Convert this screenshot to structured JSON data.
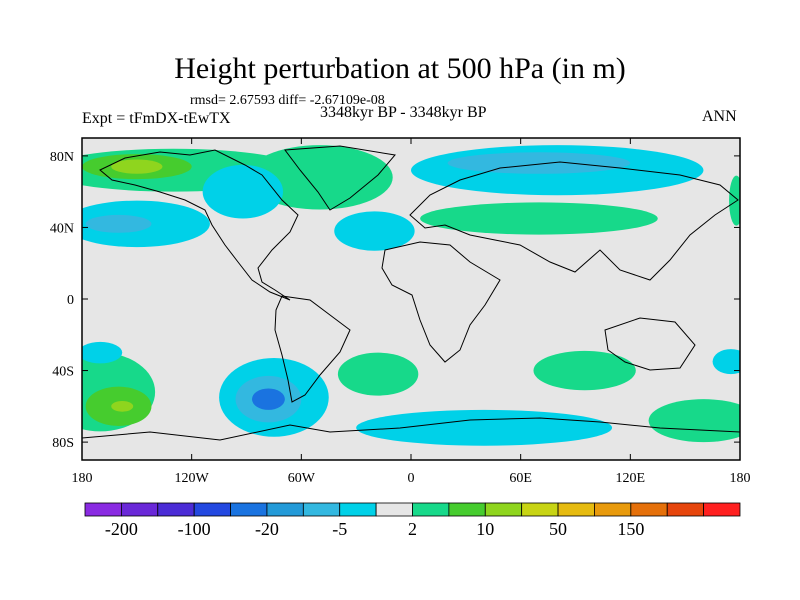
{
  "chart_data": {
    "type": "heatmap",
    "title": "Height perturbation at 500 hPa (in m)",
    "stats_text": "rmsd= 2.67593 diff= -2.67109e-08",
    "left_label": "Expt = tFmDX-tEwTX",
    "center_label": "3348kyr BP - 3348kyr BP",
    "right_label": "ANN",
    "x_ticks": [
      {
        "value": -180,
        "label": "180"
      },
      {
        "value": -120,
        "label": "120W"
      },
      {
        "value": -60,
        "label": "60W"
      },
      {
        "value": 0,
        "label": "0"
      },
      {
        "value": 60,
        "label": "60E"
      },
      {
        "value": 120,
        "label": "120E"
      },
      {
        "value": 180,
        "label": "180"
      }
    ],
    "y_ticks": [
      {
        "value": 80,
        "label": "80N"
      },
      {
        "value": 40,
        "label": "40N"
      },
      {
        "value": 0,
        "label": "0"
      },
      {
        "value": -40,
        "label": "40S"
      },
      {
        "value": -80,
        "label": "80S"
      }
    ],
    "xlim": [
      -180,
      180
    ],
    "ylim": [
      -90,
      90
    ],
    "colorbar": {
      "colors": [
        "#8a2be2",
        "#6a28d8",
        "#4b2cd6",
        "#2348e0",
        "#1a73e0",
        "#239ad8",
        "#33b8e0",
        "#00d1e8",
        "#e6e6e6",
        "#17d98a",
        "#46cc2e",
        "#8fd51e",
        "#c8d414",
        "#e6bb10",
        "#e89a0c",
        "#e5700a",
        "#e6450c",
        "#ff2020"
      ],
      "labels": [
        {
          "boundary": 1,
          "text": "-200"
        },
        {
          "boundary": 3,
          "text": "-100"
        },
        {
          "boundary": 5,
          "text": "-20"
        },
        {
          "boundary": 7,
          "text": "-5"
        },
        {
          "boundary": 9,
          "text": "2"
        },
        {
          "boundary": 11,
          "text": "10"
        },
        {
          "boundary": 13,
          "text": "50"
        },
        {
          "boundary": 15,
          "text": "150"
        }
      ]
    },
    "regions": [
      {
        "name": "north-atlantic-arctic-high",
        "value": 5,
        "color": "#17d98a",
        "lon": -130,
        "lat": 72,
        "rlon": 70,
        "rlat": 12
      },
      {
        "name": "greenland-high",
        "value": 5,
        "color": "#17d98a",
        "lon": -50,
        "lat": 68,
        "rlon": 40,
        "rlat": 18
      },
      {
        "name": "alaska-high-core",
        "value": 12,
        "color": "#46cc2e",
        "lon": -150,
        "lat": 74,
        "rlon": 30,
        "rlat": 7
      },
      {
        "name": "alaska-high-peak",
        "value": 25,
        "color": "#8fd51e",
        "lon": -150,
        "lat": 74,
        "rlon": 14,
        "rlat": 4
      },
      {
        "name": "north-pacific-low",
        "value": -3,
        "color": "#00d1e8",
        "lon": -150,
        "lat": 42,
        "rlon": 40,
        "rlat": 13
      },
      {
        "name": "north-pacific-low-core",
        "value": -8,
        "color": "#33b8e0",
        "lon": -160,
        "lat": 42,
        "rlon": 18,
        "rlat": 5
      },
      {
        "name": "north-america-low",
        "value": -3,
        "color": "#00d1e8",
        "lon": -92,
        "lat": 60,
        "rlon": 22,
        "rlat": 15
      },
      {
        "name": "atlantic-low",
        "value": -3,
        "color": "#00d1e8",
        "lon": -20,
        "lat": 38,
        "rlon": 22,
        "rlat": 11
      },
      {
        "name": "siberia-low",
        "value": -3,
        "color": "#00d1e8",
        "lon": 80,
        "lat": 72,
        "rlon": 80,
        "rlat": 14
      },
      {
        "name": "siberia-low-core",
        "value": -8,
        "color": "#33b8e0",
        "lon": 70,
        "lat": 76,
        "rlon": 50,
        "rlat": 6
      },
      {
        "name": "eurasia-high",
        "value": 5,
        "color": "#17d98a",
        "lon": 70,
        "lat": 45,
        "rlon": 65,
        "rlat": 9
      },
      {
        "name": "east-pacific-high",
        "value": 5,
        "color": "#17d98a",
        "lon": -170,
        "lat": -52,
        "rlon": 30,
        "rlat": 22
      },
      {
        "name": "south-pacific-high-core",
        "value": 12,
        "color": "#46cc2e",
        "lon": -160,
        "lat": -60,
        "rlon": 18,
        "rlat": 11
      },
      {
        "name": "south-pacific-high-peak",
        "value": 25,
        "color": "#8fd51e",
        "lon": -158,
        "lat": -60,
        "rlon": 6,
        "rlat": 3
      },
      {
        "name": "south-pacific-low",
        "value": -3,
        "color": "#00d1e8",
        "lon": -170,
        "lat": -30,
        "rlon": 12,
        "rlat": 6
      },
      {
        "name": "drake-passage-low",
        "value": -3,
        "color": "#00d1e8",
        "lon": -75,
        "lat": -55,
        "rlon": 30,
        "rlat": 22
      },
      {
        "name": "drake-passage-low-mid",
        "value": -8,
        "color": "#33b8e0",
        "lon": -78,
        "lat": -56,
        "rlon": 18,
        "rlat": 13
      },
      {
        "name": "drake-passage-low-core",
        "value": -15,
        "color": "#1a73e0",
        "lon": -78,
        "lat": -56,
        "rlon": 9,
        "rlat": 6
      },
      {
        "name": "south-atlantic-high",
        "value": 5,
        "color": "#17d98a",
        "lon": -18,
        "lat": -42,
        "rlon": 22,
        "rlat": 12
      },
      {
        "name": "antarctic-low",
        "value": -3,
        "color": "#00d1e8",
        "lon": 40,
        "lat": -72,
        "rlon": 70,
        "rlat": 10
      },
      {
        "name": "indian-ocean-high",
        "value": 5,
        "color": "#17d98a",
        "lon": 95,
        "lat": -40,
        "rlon": 28,
        "rlat": 11
      },
      {
        "name": "southwest-pacific-high",
        "value": 5,
        "color": "#17d98a",
        "lon": 160,
        "lat": -68,
        "rlon": 30,
        "rlat": 12
      },
      {
        "name": "tasman-low",
        "value": -3,
        "color": "#00d1e8",
        "lon": 175,
        "lat": -35,
        "rlon": 10,
        "rlat": 7
      },
      {
        "name": "east-asia-high",
        "value": 5,
        "color": "#17d98a",
        "lon": 178,
        "lat": 55,
        "rlon": 4,
        "rlat": 14
      }
    ]
  }
}
